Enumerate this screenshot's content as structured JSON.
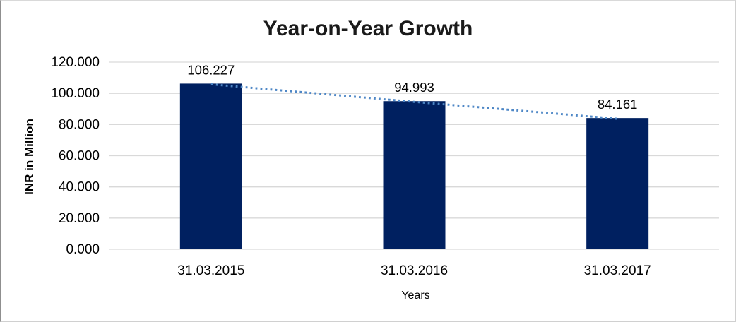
{
  "chart_data": {
    "type": "bar",
    "title": "Year-on-Year Growth",
    "xlabel": "Years",
    "ylabel": "INR in Million",
    "categories": [
      "31.03.2015",
      "31.03.2016",
      "31.03.2017"
    ],
    "values": [
      106.227,
      94.993,
      84.161
    ],
    "data_labels": [
      "106.227",
      "94.993",
      "84.161"
    ],
    "ylim": [
      0,
      120
    ],
    "ytick_step": 20,
    "ytick_labels": [
      "0.000",
      "20.000",
      "40.000",
      "60.000",
      "80.000",
      "100.000",
      "120.000"
    ],
    "grid": true,
    "legend": false,
    "trendline": {
      "style": "dotted",
      "through_values": [
        106.227,
        94.993,
        84.161
      ]
    },
    "colors": {
      "bar": "#002060",
      "trendline": "#4e87c6",
      "gridline": "#d9d9d9",
      "title_text": "#1a1a1a",
      "label_text": "#000000",
      "background": "#ffffff"
    }
  }
}
